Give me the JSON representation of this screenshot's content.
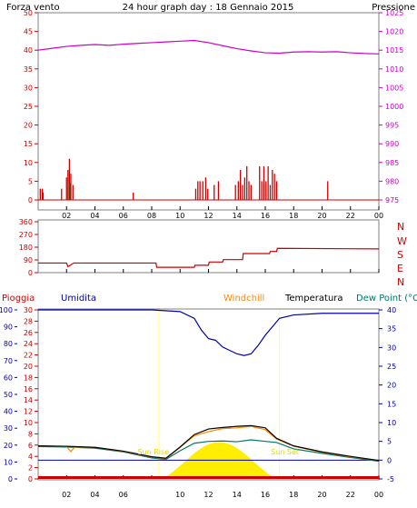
{
  "colors": {
    "border": "#808080",
    "wind": "#cc0000",
    "wind_green": "#007700",
    "pressure": "#cc00cc",
    "pressure_axis": "#cc00cc",
    "direction": "#cc0000",
    "rain": "#cc0000",
    "humidity": "#0000aa",
    "windchill": "#ff8800",
    "temperature": "#000000",
    "dewpoint": "#007766",
    "sun": "#ffee00",
    "grid": "#6666aa",
    "ground": "#ffcc00"
  },
  "header": {
    "title": "24 hour graph day : 18 Gennaio 2015",
    "left_label": "Forza vento",
    "right_label": "Pressione"
  },
  "panel2": {
    "compass": [
      "N",
      "W",
      "S",
      "E",
      "N"
    ]
  },
  "panel3": {
    "labels": {
      "rain": "Pioggia",
      "humidity": "Umidita",
      "windchill": "Windchill",
      "temperature": "Temperatura",
      "dewpoint": "Dew Point (°C"
    },
    "sun_rise": "Sun Rise",
    "sun_set": "Sun Set"
  },
  "chart_data": [
    {
      "type": "bar",
      "title": "24 hour graph day : 18 Gennaio 2015",
      "x_ticks": [
        "02",
        "04",
        "06",
        "08",
        "10",
        "12",
        "14",
        "16",
        "18",
        "20",
        "22",
        "00"
      ],
      "x_range_hours": [
        0,
        24
      ],
      "y_left": {
        "label": "Forza vento",
        "ticks": [
          0,
          5,
          10,
          15,
          20,
          25,
          30,
          35,
          40,
          45,
          50
        ],
        "range": [
          0,
          50
        ]
      },
      "y_right": {
        "label": "Pressione",
        "ticks": [
          975,
          980,
          985,
          990,
          995,
          1000,
          1005,
          1010,
          1015,
          1020,
          1025
        ],
        "range": [
          975,
          1025
        ]
      },
      "wind_bars": [
        {
          "x": 0.15,
          "v": 3
        },
        {
          "x": 0.3,
          "v": 3
        },
        {
          "x": 0.35,
          "v": 2
        },
        {
          "x": 1.65,
          "v": 3
        },
        {
          "x": 2.0,
          "v": 6
        },
        {
          "x": 2.1,
          "v": 8
        },
        {
          "x": 2.2,
          "v": 11
        },
        {
          "x": 2.3,
          "v": 7
        },
        {
          "x": 2.45,
          "v": 4
        },
        {
          "x": 6.7,
          "v": 2
        },
        {
          "x": 11.1,
          "v": 3
        },
        {
          "x": 11.25,
          "v": 5
        },
        {
          "x": 11.4,
          "v": 5
        },
        {
          "x": 11.6,
          "v": 5
        },
        {
          "x": 11.8,
          "v": 6
        },
        {
          "x": 11.95,
          "v": 3
        },
        {
          "x": 12.4,
          "v": 4
        },
        {
          "x": 12.7,
          "v": 5
        },
        {
          "x": 13.9,
          "v": 4
        },
        {
          "x": 14.1,
          "v": 5
        },
        {
          "x": 14.25,
          "v": 8
        },
        {
          "x": 14.4,
          "v": 4
        },
        {
          "x": 14.55,
          "v": 6
        },
        {
          "x": 14.7,
          "v": 9
        },
        {
          "x": 14.85,
          "v": 5
        },
        {
          "x": 15.0,
          "v": 4
        },
        {
          "x": 15.6,
          "v": 9
        },
        {
          "x": 15.75,
          "v": 5
        },
        {
          "x": 15.9,
          "v": 9
        },
        {
          "x": 16.05,
          "v": 5
        },
        {
          "x": 16.2,
          "v": 9
        },
        {
          "x": 16.35,
          "v": 4
        },
        {
          "x": 16.5,
          "v": 8
        },
        {
          "x": 16.65,
          "v": 7
        },
        {
          "x": 16.8,
          "v": 5
        },
        {
          "x": 20.4,
          "v": 5
        }
      ],
      "pressure": [
        {
          "x": 0,
          "v": 1015.0
        },
        {
          "x": 1,
          "v": 1015.5
        },
        {
          "x": 2,
          "v": 1016.0
        },
        {
          "x": 3,
          "v": 1016.3
        },
        {
          "x": 4,
          "v": 1016.5
        },
        {
          "x": 5,
          "v": 1016.3
        },
        {
          "x": 6,
          "v": 1016.6
        },
        {
          "x": 7,
          "v": 1016.8
        },
        {
          "x": 8,
          "v": 1017.0
        },
        {
          "x": 9,
          "v": 1017.2
        },
        {
          "x": 10,
          "v": 1017.4
        },
        {
          "x": 11,
          "v": 1017.6
        },
        {
          "x": 12,
          "v": 1017.0
        },
        {
          "x": 13,
          "v": 1016.2
        },
        {
          "x": 14,
          "v": 1015.4
        },
        {
          "x": 15,
          "v": 1014.8
        },
        {
          "x": 16,
          "v": 1014.3
        },
        {
          "x": 17,
          "v": 1014.2
        },
        {
          "x": 18,
          "v": 1014.5
        },
        {
          "x": 19,
          "v": 1014.6
        },
        {
          "x": 20,
          "v": 1014.5
        },
        {
          "x": 21,
          "v": 1014.6
        },
        {
          "x": 22,
          "v": 1014.3
        },
        {
          "x": 23,
          "v": 1014.1
        },
        {
          "x": 24,
          "v": 1014.0
        }
      ]
    },
    {
      "type": "line",
      "x_ticks": [
        "02",
        "04",
        "06",
        "08",
        "10",
        "12",
        "14",
        "16",
        "18",
        "20",
        "22",
        "00"
      ],
      "y_left": {
        "ticks": [
          0,
          90,
          180,
          270,
          360
        ],
        "range": [
          0,
          360
        ]
      },
      "direction": [
        {
          "x": 0,
          "v": 68
        },
        {
          "x": 2.0,
          "v": 68
        },
        {
          "x": 2.1,
          "v": 42
        },
        {
          "x": 2.3,
          "v": 55
        },
        {
          "x": 2.5,
          "v": 68
        },
        {
          "x": 8.3,
          "v": 68
        },
        {
          "x": 8.35,
          "v": 38
        },
        {
          "x": 11.0,
          "v": 38
        },
        {
          "x": 11.05,
          "v": 52
        },
        {
          "x": 12.0,
          "v": 52
        },
        {
          "x": 12.05,
          "v": 75
        },
        {
          "x": 13.0,
          "v": 75
        },
        {
          "x": 13.05,
          "v": 92
        },
        {
          "x": 14.4,
          "v": 92
        },
        {
          "x": 14.45,
          "v": 135
        },
        {
          "x": 16.3,
          "v": 135
        },
        {
          "x": 16.35,
          "v": 150
        },
        {
          "x": 16.8,
          "v": 150
        },
        {
          "x": 16.85,
          "v": 172
        },
        {
          "x": 24,
          "v": 168
        }
      ]
    },
    {
      "type": "line",
      "x_ticks": [
        "02",
        "04",
        "06",
        "08",
        "10",
        "12",
        "14",
        "16",
        "18",
        "20",
        "22",
        "00"
      ],
      "y_left_outer": {
        "label": "Umidita",
        "ticks": [
          0,
          10,
          20,
          30,
          40,
          50,
          60,
          70,
          80,
          90,
          100
        ],
        "range": [
          0,
          100
        ]
      },
      "y_left_inner": {
        "label": "Pioggia",
        "ticks": [
          0,
          2,
          4,
          6,
          8,
          10,
          12,
          14,
          16,
          18,
          20,
          22,
          24,
          26,
          28,
          30
        ],
        "range": [
          0,
          30
        ]
      },
      "y_right": {
        "label": "Temperatura (°C)",
        "ticks": [
          -5,
          0,
          5,
          10,
          15,
          20,
          25,
          30,
          35,
          40
        ],
        "range": [
          -5,
          40
        ]
      },
      "sunrise_hour": 8.5,
      "sunset_hour": 17.0,
      "humidity": [
        {
          "x": 0,
          "v": 100
        },
        {
          "x": 8,
          "v": 100
        },
        {
          "x": 10,
          "v": 99
        },
        {
          "x": 11,
          "v": 95
        },
        {
          "x": 11.5,
          "v": 88
        },
        {
          "x": 12,
          "v": 83
        },
        {
          "x": 12.5,
          "v": 82
        },
        {
          "x": 13,
          "v": 78
        },
        {
          "x": 13.5,
          "v": 76
        },
        {
          "x": 14,
          "v": 74
        },
        {
          "x": 14.5,
          "v": 73
        },
        {
          "x": 15,
          "v": 74
        },
        {
          "x": 15.5,
          "v": 79
        },
        {
          "x": 16,
          "v": 85
        },
        {
          "x": 16.5,
          "v": 90
        },
        {
          "x": 17,
          "v": 95
        },
        {
          "x": 18,
          "v": 97
        },
        {
          "x": 20,
          "v": 98
        },
        {
          "x": 24,
          "v": 98
        }
      ],
      "temperature": [
        {
          "x": 0,
          "v": 3.8
        },
        {
          "x": 2,
          "v": 3.7
        },
        {
          "x": 4,
          "v": 3.4
        },
        {
          "x": 6,
          "v": 2.4
        },
        {
          "x": 8,
          "v": 0.9
        },
        {
          "x": 9,
          "v": 0.5
        },
        {
          "x": 10,
          "v": 3.5
        },
        {
          "x": 11,
          "v": 6.8
        },
        {
          "x": 12,
          "v": 8.3
        },
        {
          "x": 13,
          "v": 8.7
        },
        {
          "x": 14,
          "v": 9.0
        },
        {
          "x": 15,
          "v": 9.2
        },
        {
          "x": 16,
          "v": 8.6
        },
        {
          "x": 16.8,
          "v": 5.8
        },
        {
          "x": 18,
          "v": 3.8
        },
        {
          "x": 20,
          "v": 2.2
        },
        {
          "x": 22,
          "v": 1.0
        },
        {
          "x": 24,
          "v": -0.1
        }
      ],
      "windchill": [
        {
          "x": 0,
          "v": 3.8
        },
        {
          "x": 2,
          "v": 3.6
        },
        {
          "x": 2.3,
          "v": 2.3
        },
        {
          "x": 2.6,
          "v": 3.5
        },
        {
          "x": 4,
          "v": 3.4
        },
        {
          "x": 6,
          "v": 2.3
        },
        {
          "x": 8,
          "v": 0.8
        },
        {
          "x": 9,
          "v": 0.4
        },
        {
          "x": 10,
          "v": 3.4
        },
        {
          "x": 11,
          "v": 6.5
        },
        {
          "x": 12,
          "v": 7.6
        },
        {
          "x": 13,
          "v": 8.4
        },
        {
          "x": 14,
          "v": 8.6
        },
        {
          "x": 15,
          "v": 9.0
        },
        {
          "x": 16,
          "v": 8.1
        },
        {
          "x": 16.8,
          "v": 5.6
        },
        {
          "x": 18,
          "v": 3.7
        },
        {
          "x": 20,
          "v": 2.1
        },
        {
          "x": 22,
          "v": 0.9
        },
        {
          "x": 24,
          "v": -0.1
        }
      ],
      "dewpoint": [
        {
          "x": 0,
          "v": 3.6
        },
        {
          "x": 2,
          "v": 3.5
        },
        {
          "x": 4,
          "v": 3.2
        },
        {
          "x": 6,
          "v": 2.2
        },
        {
          "x": 8,
          "v": 0.6
        },
        {
          "x": 9,
          "v": 0.2
        },
        {
          "x": 10,
          "v": 2.5
        },
        {
          "x": 11,
          "v": 4.5
        },
        {
          "x": 12,
          "v": 5.0
        },
        {
          "x": 13,
          "v": 5.1
        },
        {
          "x": 14,
          "v": 4.9
        },
        {
          "x": 15,
          "v": 5.4
        },
        {
          "x": 16,
          "v": 5.0
        },
        {
          "x": 16.8,
          "v": 4.7
        },
        {
          "x": 18,
          "v": 3.0
        },
        {
          "x": 20,
          "v": 1.8
        },
        {
          "x": 22,
          "v": 0.7
        },
        {
          "x": 24,
          "v": -0.3
        }
      ],
      "rain_total_mm": 0,
      "solar_peak_c": 4.8
    }
  ]
}
